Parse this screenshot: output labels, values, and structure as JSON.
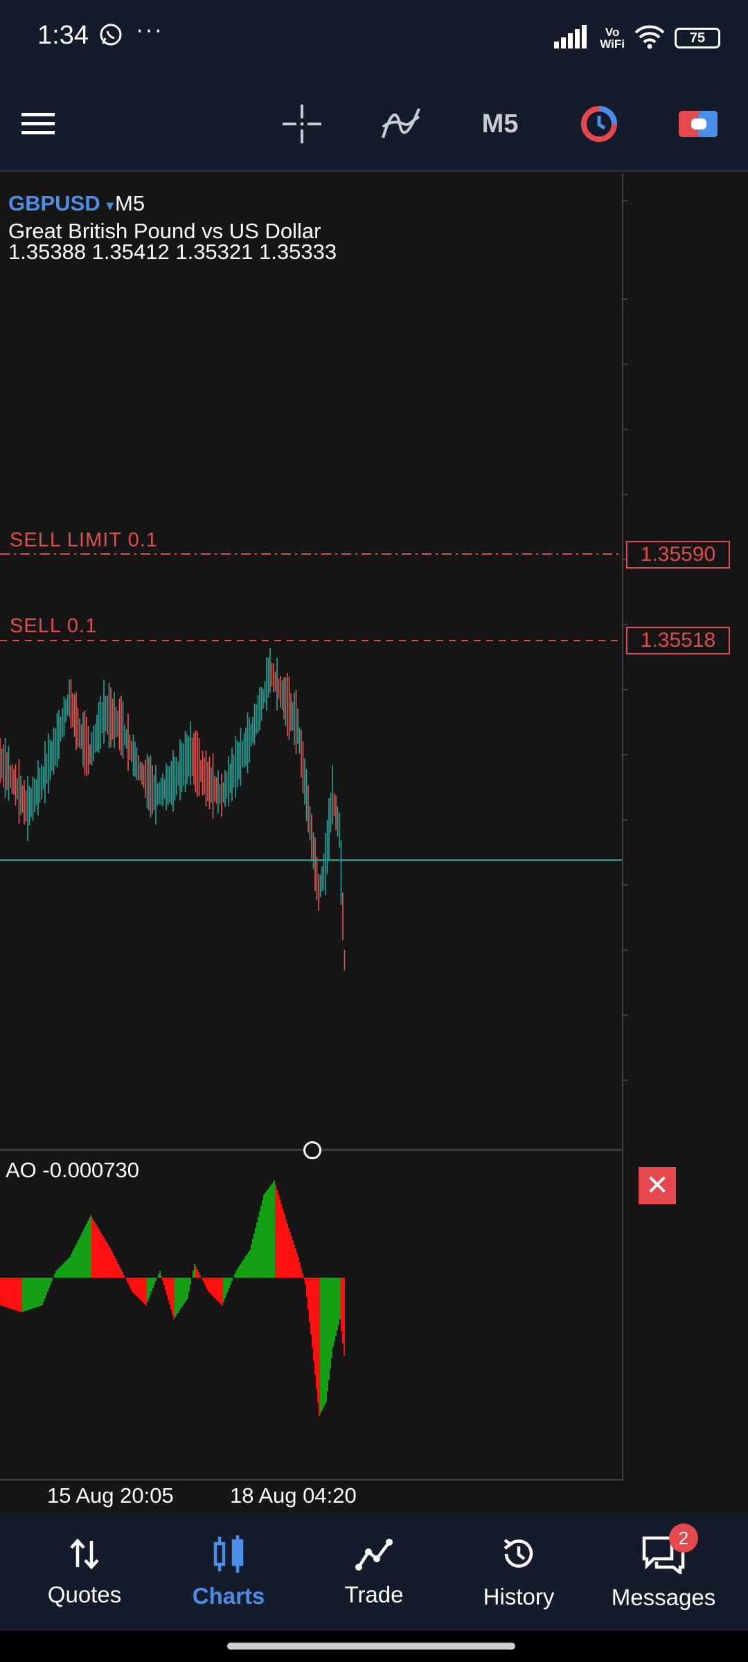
{
  "status_bar": {
    "time": "1:34",
    "icons": [
      "whatsapp-icon",
      "more-dots-icon",
      "signal-icon",
      "vowifi-icon",
      "wifi-icon",
      "battery-icon"
    ],
    "battery": "75",
    "vowifi_top": "Vo",
    "vowifi_bottom": "WiFi"
  },
  "toolbar": {
    "timeframe": "M5",
    "icons": [
      "menu-icon",
      "crosshair-icon",
      "indicators-icon",
      "timeframe",
      "one-click-trading-icon",
      "trade-panel-icon"
    ]
  },
  "chart": {
    "symbol": "GBPUSD",
    "symbol_arrow": "▾",
    "timeframe": "M5",
    "description": "Great British Pound vs US Dollar",
    "ohlc": "1.35388 1.35412 1.35321 1.35333",
    "orders": [
      {
        "label": "SELL LIMIT 0.1",
        "price": "1.35590"
      },
      {
        "label": "SELL 0.1",
        "price": "1.35518"
      }
    ],
    "bid_line_color": "#26a69a",
    "bull_color": "#26a69a",
    "bear_color": "#ef5350",
    "order_color": "#e04b4b"
  },
  "indicator": {
    "label": "AO -0.000730",
    "close_symbol": "✕",
    "up_color": "#14a014",
    "down_color": "#ff1010"
  },
  "time_axis": [
    "15 Aug 20:05",
    "18 Aug 04:20"
  ],
  "bottom_nav": {
    "items": [
      {
        "label": "Quotes",
        "icon": "quotes-icon",
        "active": false
      },
      {
        "label": "Charts",
        "icon": "charts-icon",
        "active": true
      },
      {
        "label": "Trade",
        "icon": "trade-icon",
        "active": false
      },
      {
        "label": "History",
        "icon": "history-icon",
        "active": false
      },
      {
        "label": "Messages",
        "icon": "messages-icon",
        "active": false
      }
    ],
    "messages_badge": "2"
  }
}
